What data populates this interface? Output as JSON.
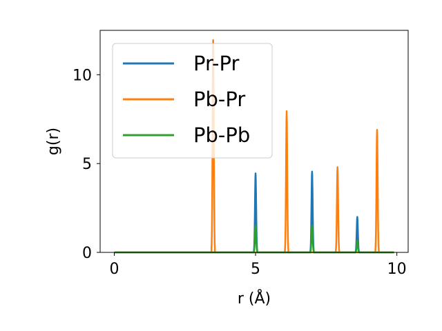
{
  "chart_data": {
    "type": "line",
    "title": "",
    "xlabel": "r (Å)",
    "ylabel": "g(r)",
    "xlim": [
      -0.5,
      10.4
    ],
    "ylim": [
      0,
      12.5
    ],
    "xticks": [
      "0",
      "5",
      "10"
    ],
    "yticks": [
      "0",
      "5",
      "10"
    ],
    "grid": false,
    "legend_position": "top-left",
    "series": [
      {
        "name": "Pr-Pr",
        "color": "#1f77b4",
        "baseline_x": [
          0,
          9.9
        ],
        "peaks": [
          {
            "x": 5.0,
            "y": 4.45
          },
          {
            "x": 7.0,
            "y": 4.55
          },
          {
            "x": 8.6,
            "y": 2.0
          }
        ]
      },
      {
        "name": "Pb-Pr",
        "color": "#ff7f0e",
        "baseline_x": [
          0,
          9.9
        ],
        "peaks": [
          {
            "x": 3.5,
            "y": 11.95
          },
          {
            "x": 6.1,
            "y": 7.95
          },
          {
            "x": 7.9,
            "y": 4.8
          },
          {
            "x": 9.3,
            "y": 6.9
          }
        ]
      },
      {
        "name": "Pb-Pb",
        "color": "#2ca02c",
        "baseline_x": [
          0,
          9.9
        ],
        "peaks": [
          {
            "x": 5.0,
            "y": 1.5
          },
          {
            "x": 7.0,
            "y": 1.5
          },
          {
            "x": 8.6,
            "y": 0.65
          }
        ]
      }
    ]
  }
}
